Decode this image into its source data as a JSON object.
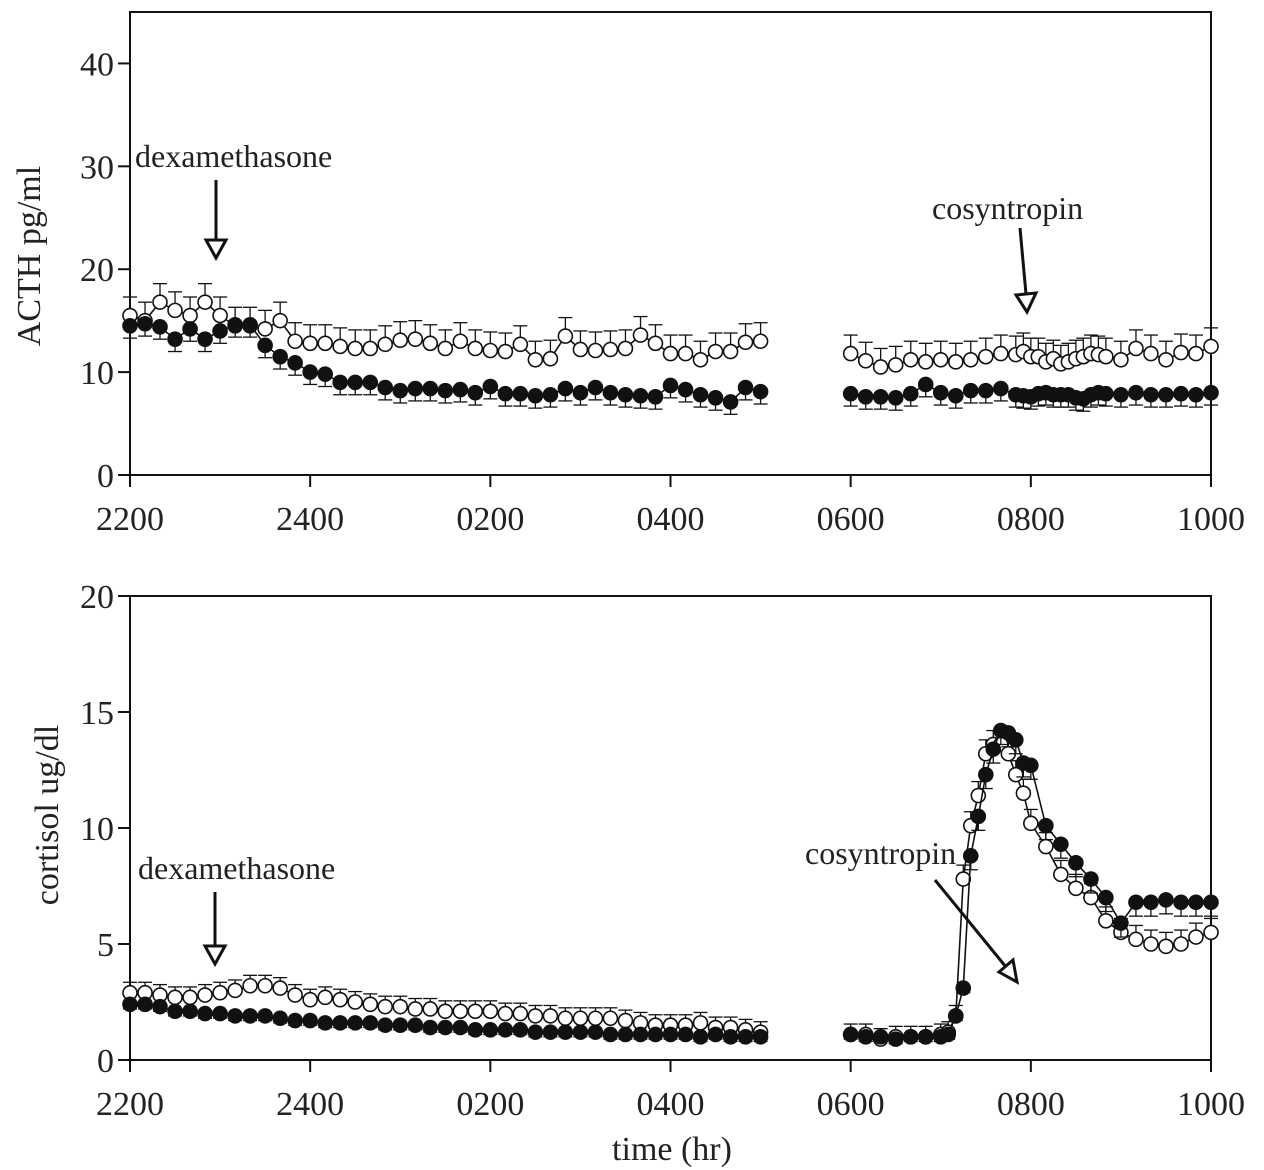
{
  "chart_data": [
    {
      "type": "scatter",
      "panel": "top",
      "title": "",
      "xlabel": "",
      "ylabel": "ACTH pg/ml",
      "xlim": [
        0,
        12
      ],
      "ylim": [
        0,
        45
      ],
      "x_tick_labels": [
        "2200",
        "2400",
        "0200",
        "0400",
        "0600",
        "0800",
        "1000"
      ],
      "x_tick_positions_hours_from_2200": [
        0,
        2,
        4,
        6,
        8,
        10,
        12
      ],
      "y_ticks": [
        0,
        10,
        20,
        30,
        40
      ],
      "annotations": [
        {
          "text": "dexamethasone",
          "x": 0.95,
          "y": 22
        },
        {
          "text": "cosyntropin",
          "x": 10.0,
          "y": 15
        }
      ],
      "series": [
        {
          "marker": "open-circle",
          "x": [
            0,
            0.167,
            0.333,
            0.5,
            0.667,
            0.833,
            1,
            1.167,
            1.333,
            1.5,
            1.667,
            1.833,
            2,
            2.167,
            2.333,
            2.5,
            2.667,
            2.833,
            3,
            3.167,
            3.333,
            3.5,
            3.667,
            3.833,
            4,
            4.167,
            4.333,
            4.5,
            4.667,
            4.833,
            5,
            5.167,
            5.333,
            5.5,
            5.667,
            5.833,
            6,
            6.167,
            6.333,
            6.5,
            6.667,
            6.833,
            7,
            8,
            8.167,
            8.333,
            8.5,
            8.667,
            8.833,
            9,
            9.167,
            9.333,
            9.5,
            9.667,
            9.833,
            9.917,
            10,
            10.083,
            10.167,
            10.25,
            10.333,
            10.417,
            10.5,
            10.583,
            10.667,
            10.75,
            10.833,
            11,
            11.167,
            11.333,
            11.5,
            11.667,
            11.833,
            12
          ],
          "y": [
            15.5,
            15.0,
            16.8,
            16.0,
            15.5,
            16.8,
            15.5,
            14.5,
            14.5,
            14.2,
            15.0,
            13.0,
            12.8,
            12.8,
            12.5,
            12.3,
            12.3,
            12.7,
            13.1,
            13.2,
            12.8,
            12.3,
            13.0,
            12.3,
            12.1,
            12.0,
            12.7,
            11.2,
            11.3,
            13.5,
            12.2,
            12.1,
            12.2,
            12.3,
            13.6,
            12.8,
            11.8,
            11.8,
            11.2,
            12.0,
            12.0,
            12.9,
            13.0,
            11.8,
            11.1,
            10.5,
            10.7,
            11.2,
            11.0,
            11.2,
            11.0,
            11.2,
            11.5,
            11.8,
            11.7,
            12.0,
            11.5,
            11.5,
            11.0,
            11.3,
            10.8,
            11.0,
            11.3,
            11.5,
            11.8,
            11.7,
            11.5,
            11.2,
            12.3,
            11.8,
            11.2,
            11.9,
            11.8,
            12.5
          ]
        },
        {
          "marker": "filled-circle",
          "x": [
            0,
            0.167,
            0.333,
            0.5,
            0.667,
            0.833,
            1,
            1.167,
            1.333,
            1.5,
            1.667,
            1.833,
            2,
            2.167,
            2.333,
            2.5,
            2.667,
            2.833,
            3,
            3.167,
            3.333,
            3.5,
            3.667,
            3.833,
            4,
            4.167,
            4.333,
            4.5,
            4.667,
            4.833,
            5,
            5.167,
            5.333,
            5.5,
            5.667,
            5.833,
            6,
            6.167,
            6.333,
            6.5,
            6.667,
            6.833,
            7,
            8,
            8.167,
            8.333,
            8.5,
            8.667,
            8.833,
            9,
            9.167,
            9.333,
            9.5,
            9.667,
            9.833,
            9.917,
            10,
            10.083,
            10.167,
            10.25,
            10.333,
            10.417,
            10.5,
            10.583,
            10.667,
            10.75,
            10.833,
            11,
            11.167,
            11.333,
            11.5,
            11.667,
            11.833,
            12
          ],
          "y": [
            14.5,
            14.7,
            14.4,
            13.2,
            14.2,
            13.2,
            14.0,
            14.6,
            14.6,
            12.6,
            11.5,
            10.9,
            10.0,
            9.8,
            9.0,
            9.0,
            9.0,
            8.5,
            8.2,
            8.4,
            8.4,
            8.2,
            8.3,
            8.0,
            8.6,
            7.9,
            7.9,
            7.7,
            7.8,
            8.4,
            8.0,
            8.5,
            8.0,
            7.8,
            7.7,
            7.6,
            8.7,
            8.3,
            7.8,
            7.5,
            7.1,
            8.5,
            8.1,
            7.9,
            7.6,
            7.6,
            7.5,
            7.9,
            8.8,
            8.0,
            7.7,
            8.2,
            8.2,
            8.4,
            7.8,
            7.7,
            7.6,
            7.9,
            8.0,
            7.8,
            7.8,
            7.8,
            7.5,
            7.4,
            7.8,
            8.0,
            7.9,
            7.8,
            8.0,
            7.8,
            7.8,
            7.9,
            7.8,
            8.0
          ]
        }
      ]
    },
    {
      "type": "scatter",
      "panel": "bottom",
      "title": "",
      "xlabel": "time (hr)",
      "ylabel": "cortisol ug/dl",
      "xlim": [
        0,
        12
      ],
      "ylim": [
        0,
        20
      ],
      "x_tick_labels": [
        "2200",
        "2400",
        "0200",
        "0400",
        "0600",
        "0800",
        "1000"
      ],
      "x_tick_positions_hours_from_2200": [
        0,
        2,
        4,
        6,
        8,
        10,
        12
      ],
      "y_ticks": [
        0,
        5,
        10,
        15,
        20
      ],
      "annotations": [
        {
          "text": "dexamethasone",
          "x": 0.95,
          "y": 4.5
        },
        {
          "text": "cosyntropin",
          "x": 8.5,
          "y": 8.5
        }
      ],
      "series": [
        {
          "marker": "open-circle",
          "x": [
            0,
            0.167,
            0.333,
            0.5,
            0.667,
            0.833,
            1,
            1.167,
            1.333,
            1.5,
            1.667,
            1.833,
            2,
            2.167,
            2.333,
            2.5,
            2.667,
            2.833,
            3,
            3.167,
            3.333,
            3.5,
            3.667,
            3.833,
            4,
            4.167,
            4.333,
            4.5,
            4.667,
            4.833,
            5,
            5.167,
            5.333,
            5.5,
            5.667,
            5.833,
            6,
            6.167,
            6.333,
            6.5,
            6.667,
            6.833,
            7,
            8,
            8.167,
            8.333,
            8.5,
            8.667,
            8.833,
            9,
            9.083,
            9.167,
            9.25,
            9.333,
            9.417,
            9.5,
            9.583,
            9.667,
            9.75,
            9.833,
            9.917,
            10,
            10.167,
            10.333,
            10.5,
            10.667,
            10.833,
            11,
            11.167,
            11.333,
            11.5,
            11.667,
            11.833,
            12
          ],
          "y": [
            2.9,
            2.9,
            2.8,
            2.7,
            2.7,
            2.8,
            2.9,
            3.0,
            3.2,
            3.2,
            3.1,
            2.8,
            2.6,
            2.7,
            2.6,
            2.5,
            2.4,
            2.3,
            2.3,
            2.2,
            2.2,
            2.1,
            2.1,
            2.1,
            2.1,
            2.0,
            2.0,
            1.9,
            1.9,
            1.8,
            1.8,
            1.8,
            1.8,
            1.7,
            1.6,
            1.5,
            1.5,
            1.5,
            1.6,
            1.4,
            1.4,
            1.3,
            1.2,
            1.1,
            1.1,
            0.9,
            1.0,
            1.0,
            1.0,
            1.1,
            1.2,
            1.9,
            7.8,
            10.1,
            11.4,
            13.2,
            13.6,
            13.6,
            13.2,
            12.3,
            11.5,
            10.2,
            9.2,
            8.0,
            7.4,
            7.0,
            6.0,
            5.5,
            5.2,
            5.0,
            4.9,
            5.0,
            5.3,
            5.5
          ]
        },
        {
          "marker": "filled-circle",
          "x": [
            0,
            0.167,
            0.333,
            0.5,
            0.667,
            0.833,
            1,
            1.167,
            1.333,
            1.5,
            1.667,
            1.833,
            2,
            2.167,
            2.333,
            2.5,
            2.667,
            2.833,
            3,
            3.167,
            3.333,
            3.5,
            3.667,
            3.833,
            4,
            4.167,
            4.333,
            4.5,
            4.667,
            4.833,
            5,
            5.167,
            5.333,
            5.5,
            5.667,
            5.833,
            6,
            6.167,
            6.333,
            6.5,
            6.667,
            6.833,
            7,
            8,
            8.167,
            8.333,
            8.5,
            8.667,
            8.833,
            9,
            9.083,
            9.167,
            9.25,
            9.333,
            9.417,
            9.5,
            9.583,
            9.667,
            9.75,
            9.833,
            9.917,
            10,
            10.167,
            10.333,
            10.5,
            10.667,
            10.833,
            11,
            11.167,
            11.333,
            11.5,
            11.667,
            11.833,
            12
          ],
          "y": [
            2.4,
            2.4,
            2.3,
            2.1,
            2.1,
            2.0,
            2.0,
            1.9,
            1.9,
            1.9,
            1.8,
            1.7,
            1.7,
            1.6,
            1.6,
            1.6,
            1.6,
            1.5,
            1.5,
            1.5,
            1.4,
            1.4,
            1.4,
            1.3,
            1.3,
            1.3,
            1.3,
            1.2,
            1.2,
            1.2,
            1.2,
            1.2,
            1.1,
            1.1,
            1.1,
            1.1,
            1.1,
            1.1,
            1.0,
            1.1,
            1.0,
            1.0,
            1.0,
            1.1,
            1.0,
            1.0,
            0.9,
            1.0,
            1.0,
            1.0,
            1.1,
            1.9,
            3.1,
            8.8,
            10.5,
            12.3,
            13.4,
            14.2,
            14.1,
            13.8,
            12.8,
            12.7,
            10.1,
            9.3,
            8.5,
            7.8,
            7.0,
            5.9,
            6.8,
            6.8,
            6.9,
            6.8,
            6.8,
            6.8
          ]
        }
      ]
    }
  ]
}
